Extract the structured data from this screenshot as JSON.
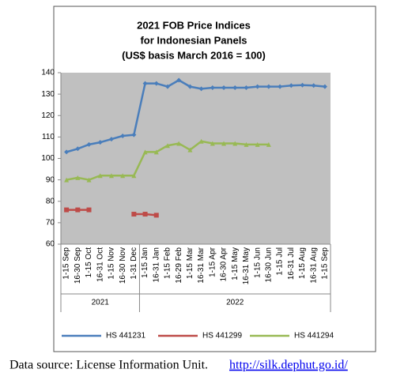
{
  "chart_data": {
    "type": "line",
    "title": [
      "2021 FOB Price Indices",
      "for Indonesian Panels",
      "(US$ basis March 2016 = 100)"
    ],
    "categories": [
      "1-15 Sep",
      "16-30 Sep",
      "1-15 Oct",
      "16-31 Oct",
      "1-15 Nov",
      "16-30 Nov",
      "1-31 Dec",
      "1-15 Jan",
      "16-31 Jan",
      "1-15 Feb",
      "16-29 Feb",
      "1-15 Mar",
      "16-31 Mar",
      "1-15 Apr",
      "16-30 Apr",
      "1-15 May",
      "16-31 May",
      "1-15 Jun",
      "16-30 Jun",
      "1-15 Jul",
      "16-31 Jul",
      "1-15 Aug",
      "16-31 Aug",
      "1-15 Sep"
    ],
    "x_groups": [
      {
        "label": "2021",
        "start": 0,
        "end": 6
      },
      {
        "label": "2022",
        "start": 7,
        "end": 23
      }
    ],
    "series": [
      {
        "name": "HS 441231",
        "color": "#4a7ebb",
        "values": [
          103,
          104.5,
          106.5,
          107.5,
          109,
          110.5,
          111,
          135,
          135,
          133.5,
          136.5,
          133.5,
          132.5,
          133,
          133,
          133,
          133,
          133.5,
          133.5,
          133.5,
          134,
          134.2,
          134,
          133.5
        ]
      },
      {
        "name": "HS 441299",
        "color": "#be4b48",
        "values": [
          76,
          76,
          76,
          null,
          null,
          null,
          74,
          74,
          73.5,
          null,
          null,
          null,
          null,
          null,
          null,
          null,
          null,
          null,
          null,
          null,
          null,
          null,
          null,
          null
        ]
      },
      {
        "name": "HS 441294",
        "color": "#98b954",
        "values": [
          90,
          91,
          90,
          92,
          92,
          92,
          92,
          103,
          103,
          106,
          107,
          104,
          108,
          107,
          107,
          107,
          106.5,
          106.5,
          106.5,
          null,
          null,
          null,
          null,
          null
        ]
      }
    ],
    "ylim": [
      60,
      140
    ],
    "yticks": [
      60,
      70,
      80,
      90,
      100,
      110,
      120,
      130,
      140
    ],
    "legend": "bottom"
  },
  "footer": {
    "text": "Data source: License Information Unit.",
    "link": "http://silk.dephut.go.id/"
  }
}
